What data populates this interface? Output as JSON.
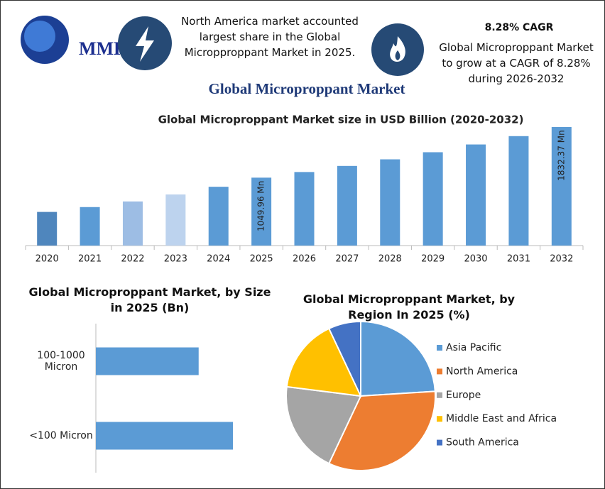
{
  "header": {
    "logo": "MMR",
    "note": "North America market accounted largest share in the Global Micropproppant Market in 2025.",
    "cagr_title": "8.28% CAGR",
    "cagr_text": "Global Microproppant Market to grow at a CAGR of 8.28% during 2026-2032",
    "title": "Global Microproppant Market"
  },
  "chart_data": [
    {
      "type": "bar",
      "title": "Global Microproppant Market size in USD Billion (2020-2032)",
      "categories": [
        "2020",
        "2021",
        "2022",
        "2023",
        "2024",
        "2025",
        "2026",
        "2027",
        "2028",
        "2029",
        "2030",
        "2031",
        "2032"
      ],
      "values": [
        520,
        595,
        682,
        790,
        909,
        1049.96,
        1137,
        1231,
        1333,
        1443,
        1563,
        1692,
        1832.37
      ],
      "value_labels": [
        null,
        null,
        null,
        null,
        null,
        "1049.96 Mn",
        null,
        null,
        null,
        null,
        null,
        null,
        "1832.37 Mn"
      ],
      "colors": [
        "#4f86bd",
        "#5b9bd5",
        "#9dbde4",
        "#bdd3ee",
        "#5b9bd5",
        "#5b9bd5",
        "#5b9bd5",
        "#5b9bd5",
        "#5b9bd5",
        "#5b9bd5",
        "#5b9bd5",
        "#5b9bd5",
        "#5b9bd5"
      ]
    },
    {
      "type": "hbar",
      "title": "Global Microproppant Market, by Size in 2025 (Bn)",
      "categories": [
        "100-1000 Micron",
        "<100 Micron"
      ],
      "values": [
        0.45,
        0.6
      ],
      "color": "#5b9bd5"
    },
    {
      "type": "pie",
      "title": "Global Microproppant Market, by Region In 2025 (%)",
      "categories": [
        "Asia Pacific",
        "North America",
        "Europe",
        "Middle East and Africa",
        "South America"
      ],
      "values": [
        24,
        33,
        20,
        16,
        7
      ],
      "colors": [
        "#5b9bd5",
        "#ed7d31",
        "#a5a5a5",
        "#ffc000",
        "#4472c4"
      ],
      "legend": "right"
    }
  ]
}
